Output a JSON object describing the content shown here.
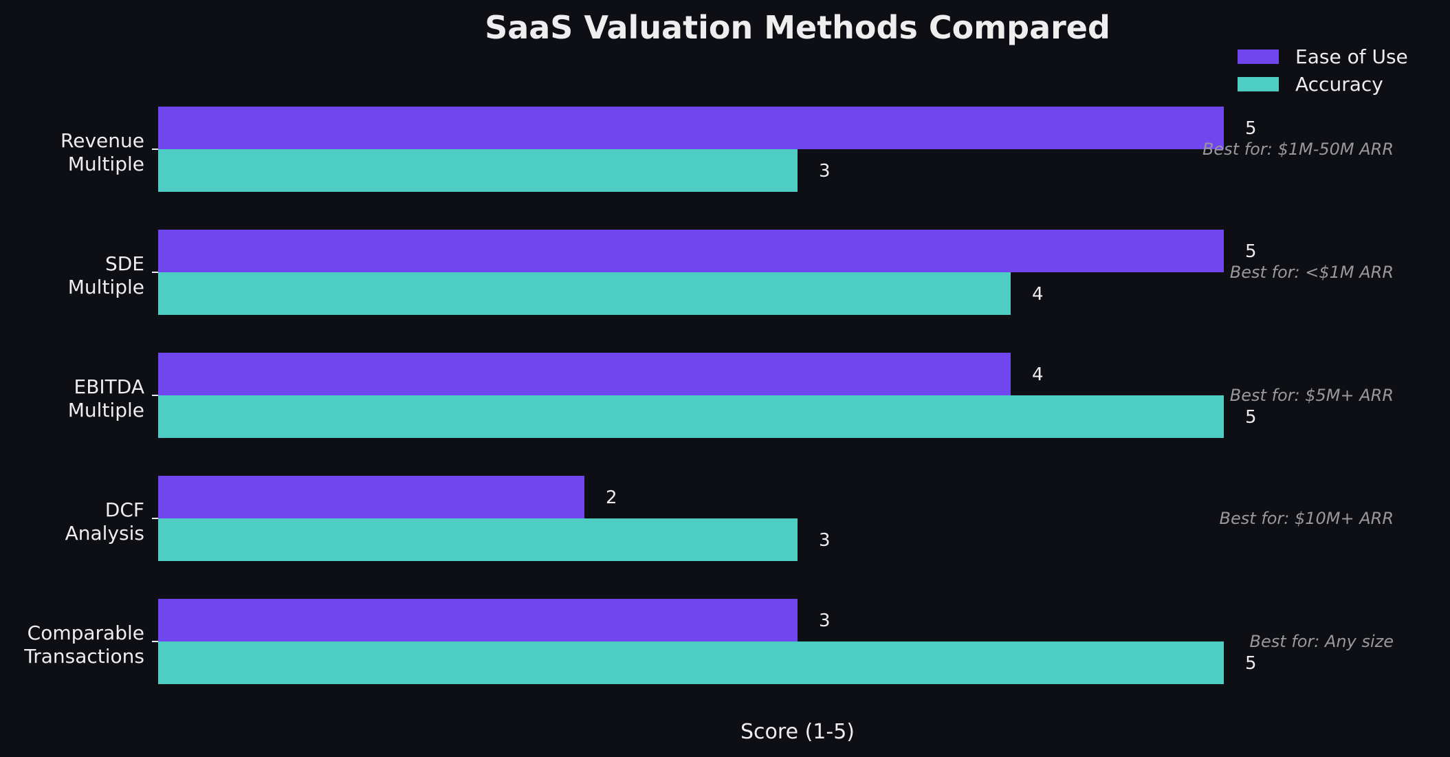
{
  "chart_data": {
    "type": "bar",
    "orientation": "horizontal",
    "title": "SaaS Valuation Methods Compared",
    "xlabel": "Score (1-5)",
    "ylabel": "",
    "xlim": [
      0,
      5
    ],
    "grid": false,
    "legend_position": "bottom-right",
    "categories": [
      "Revenue\nMultiple",
      "SDE\nMultiple",
      "EBITDA\nMultiple",
      "DCF\nAnalysis",
      "Comparable\nTransactions"
    ],
    "series": [
      {
        "name": "Ease of Use",
        "color": "#7047ef",
        "values": [
          5,
          5,
          4,
          2,
          3
        ]
      },
      {
        "name": "Accuracy",
        "color": "#4ecdc4",
        "values": [
          3,
          4,
          5,
          3,
          5
        ]
      }
    ],
    "annotations": [
      "Best for: $1M-50M ARR",
      "Best for: <$1M ARR",
      "Best for: $5M+ ARR",
      "Best for: $10M+ ARR",
      "Best for: Any size"
    ],
    "background": "#0e0f14"
  }
}
